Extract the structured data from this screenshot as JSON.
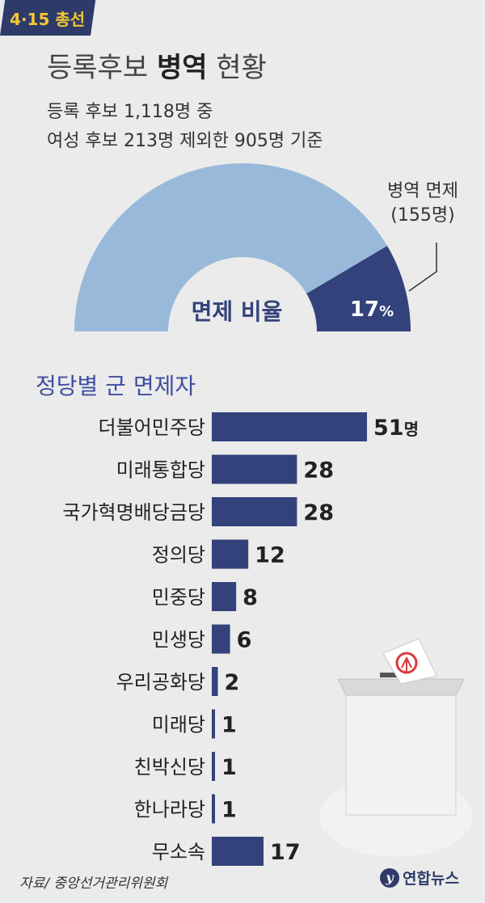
{
  "badge": "4·15 총선",
  "title": {
    "light_pre": "등록후보 ",
    "bold": "병역",
    "light_post": " 현황"
  },
  "subtitle_1": "등록 후보 1,118명 중",
  "subtitle_2": "여성 후보 213명 제외한 905명 기준",
  "gauge": {
    "label": "면제 비율",
    "percent_text": "17",
    "percent_sign": "%",
    "callout_line1": "병역 면제",
    "callout_line2": "(155명)",
    "exempt_fraction": 0.17,
    "colors": {
      "rest": "#99b9da",
      "exempt": "#33427a"
    }
  },
  "section_title": "정당별 군 면제자",
  "chart_data": {
    "type": "bar",
    "orientation": "horizontal",
    "title": "정당별 군 면제자",
    "categories": [
      "더불어민주당",
      "미래통합당",
      "국가혁명배당금당",
      "정의당",
      "민중당",
      "민생당",
      "우리공화당",
      "미래당",
      "친박신당",
      "한나라당",
      "무소속"
    ],
    "values": [
      51,
      28,
      28,
      12,
      8,
      6,
      2,
      1,
      1,
      1,
      17
    ],
    "value_labels": [
      "51",
      "28",
      "28",
      "12",
      "8",
      "6",
      "2",
      "1",
      "1",
      "1",
      "17"
    ],
    "first_unit": "명",
    "bar_color": "#33427a"
  },
  "footer": {
    "source": "자료/ 중앙선거관리위원회",
    "logo_text": "연합뉴스",
    "logo_mark": "y"
  }
}
